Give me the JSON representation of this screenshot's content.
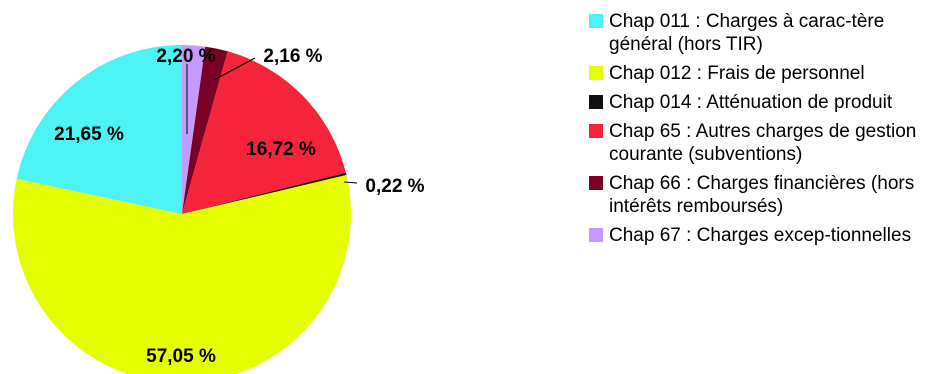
{
  "chart_data": {
    "type": "pie",
    "categories": [
      "Chap 011 : Charges à carac-tère général (hors TIR)",
      "Chap 012 : Frais de personnel",
      "Chap 014 : Atténuation de produit",
      "Chap 65 : Autres charges de gestion courante (subventions)",
      "Chap 66 : Charges financières (hors intérêts remboursés)",
      "Chap 67 : Charges excep-tionnelles"
    ],
    "values": [
      21.65,
      57.05,
      0.22,
      16.72,
      2.16,
      2.2
    ],
    "value_labels": [
      "21,65 %",
      "57,05 %",
      "0,22 %",
      "16,72 %",
      "2,16 %",
      "2,20 %"
    ],
    "colors": [
      "#4df2f5",
      "#e6ff00",
      "#111111",
      "#f5243a",
      "#7a0025",
      "#c49aff"
    ],
    "legend_position": "right"
  }
}
